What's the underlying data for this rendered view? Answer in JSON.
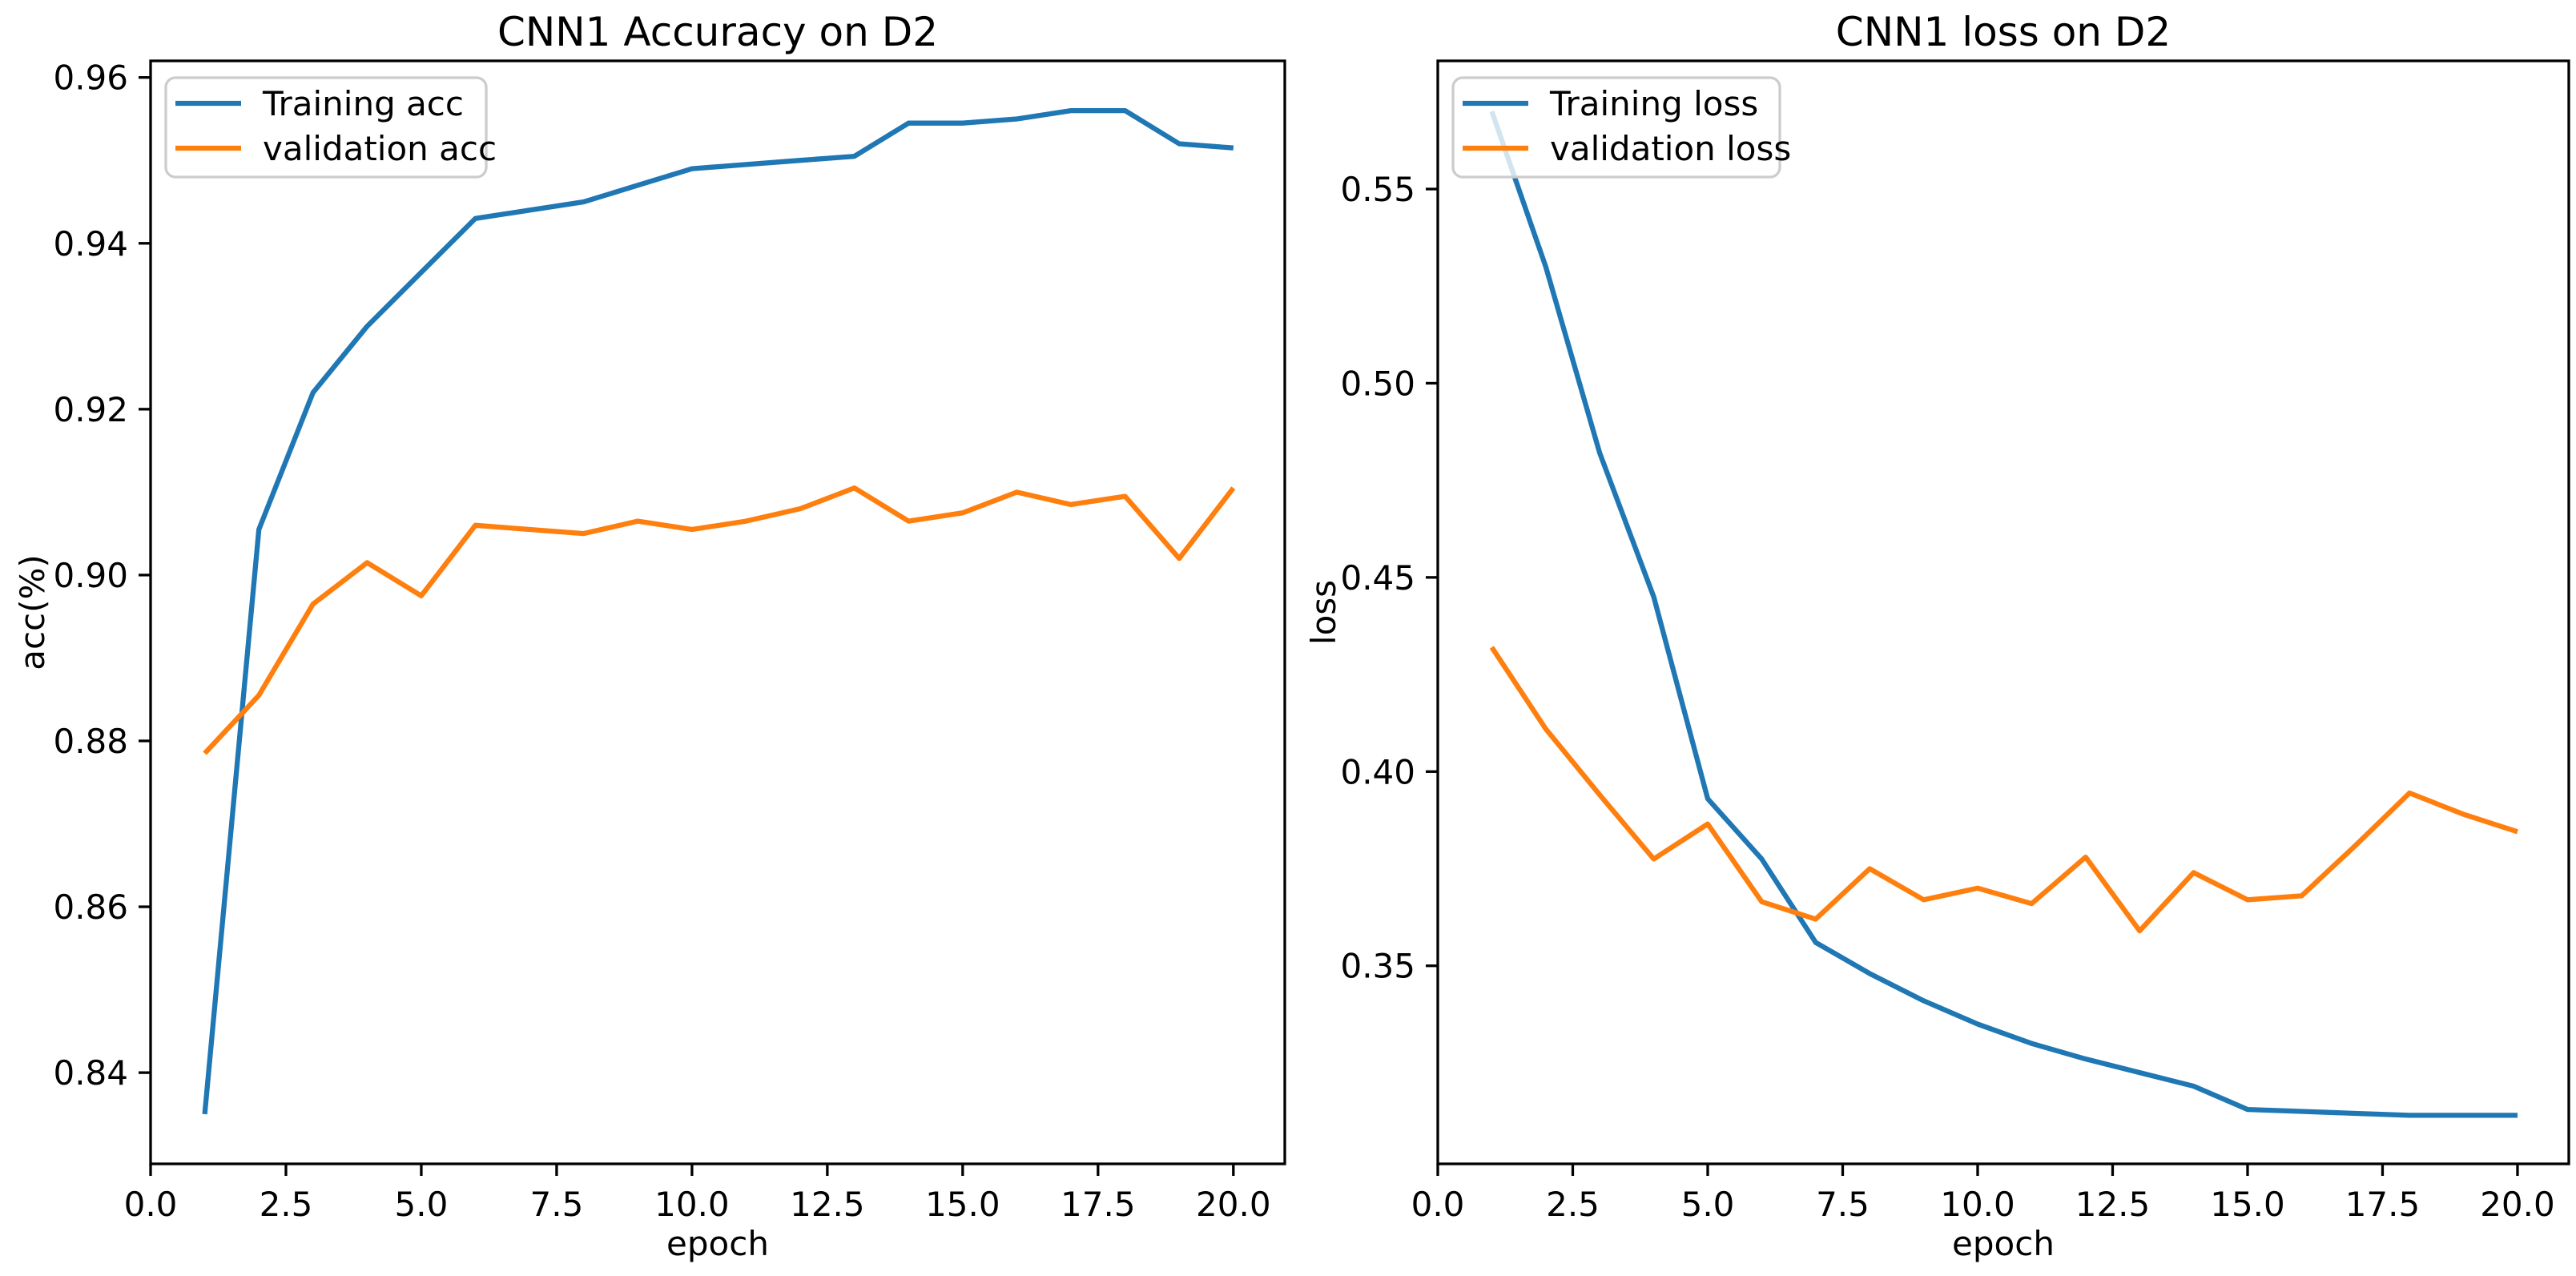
{
  "figure": {
    "background": "#ffffff",
    "text_color": "#000000",
    "spine_color": "#000000",
    "legend_border_color": "#cccccc",
    "legend_fill": "#ffffff"
  },
  "chart_data": [
    {
      "type": "line",
      "title": "CNN1 Accuracy on D2",
      "xlabel": "epoch",
      "ylabel": "acc(%)",
      "xlim": [
        0,
        20.95
      ],
      "ylim": [
        0.829,
        0.962
      ],
      "grid": false,
      "legend_position": "upper left",
      "xticks": {
        "values": [
          0,
          2.5,
          5,
          7.5,
          10,
          12.5,
          15,
          17.5,
          20
        ],
        "labels": [
          "0.0",
          "2.5",
          "5.0",
          "7.5",
          "10.0",
          "12.5",
          "15.0",
          "17.5",
          "20.0"
        ]
      },
      "yticks": {
        "values": [
          0.84,
          0.86,
          0.88,
          0.9,
          0.92,
          0.94,
          0.96
        ],
        "labels": [
          "0.84",
          "0.86",
          "0.88",
          "0.90",
          "0.92",
          "0.94",
          "0.96"
        ]
      },
      "x": [
        1,
        2,
        3,
        4,
        5,
        6,
        7,
        8,
        9,
        10,
        11,
        12,
        13,
        14,
        15,
        16,
        17,
        18,
        19,
        20
      ],
      "series": [
        {
          "name": "Training acc",
          "color": "#1f77b4",
          "values": [
            0.835,
            0.9055,
            0.922,
            0.93,
            0.9365,
            0.943,
            0.944,
            0.945,
            0.947,
            0.949,
            0.9495,
            0.95,
            0.9505,
            0.9545,
            0.9545,
            0.955,
            0.956,
            0.956,
            0.952,
            0.9515
          ]
        },
        {
          "name": "validation acc",
          "color": "#ff7f0e",
          "values": [
            0.8785,
            0.8855,
            0.8965,
            0.9015,
            0.8975,
            0.906,
            0.9055,
            0.905,
            0.9065,
            0.9055,
            0.9065,
            0.908,
            0.9105,
            0.9065,
            0.9075,
            0.91,
            0.9085,
            0.9095,
            0.902,
            0.9105
          ]
        }
      ]
    },
    {
      "type": "line",
      "title": "CNN1 loss on D2",
      "xlabel": "epoch",
      "ylabel": "loss",
      "xlim": [
        0,
        20.95
      ],
      "ylim": [
        0.299,
        0.583
      ],
      "grid": false,
      "legend_position": "upper left",
      "xticks": {
        "values": [
          0,
          2.5,
          5,
          7.5,
          10,
          12.5,
          15,
          17.5,
          20
        ],
        "labels": [
          "0.0",
          "2.5",
          "5.0",
          "7.5",
          "10.0",
          "12.5",
          "15.0",
          "17.5",
          "20.0"
        ]
      },
      "yticks": {
        "values": [
          0.35,
          0.4,
          0.45,
          0.5,
          0.55
        ],
        "labels": [
          "0.35",
          "0.40",
          "0.45",
          "0.50",
          "0.55"
        ]
      },
      "x": [
        1,
        2,
        3,
        4,
        5,
        6,
        7,
        8,
        9,
        10,
        11,
        12,
        13,
        14,
        15,
        16,
        17,
        18,
        19,
        20
      ],
      "series": [
        {
          "name": "Training loss",
          "color": "#1f77b4",
          "values": [
            0.57,
            0.53,
            0.482,
            0.445,
            0.393,
            0.3775,
            0.356,
            0.348,
            0.341,
            0.335,
            0.33,
            0.326,
            0.3225,
            0.319,
            0.313,
            0.3125,
            0.312,
            0.3115,
            0.3115,
            0.3115
          ]
        },
        {
          "name": "validation loss",
          "color": "#ff7f0e",
          "values": [
            0.432,
            0.411,
            0.394,
            0.3775,
            0.3865,
            0.3665,
            0.362,
            0.375,
            0.367,
            0.37,
            0.366,
            0.378,
            0.359,
            0.374,
            0.367,
            0.368,
            0.381,
            0.3945,
            0.389,
            0.3845
          ]
        }
      ]
    }
  ]
}
